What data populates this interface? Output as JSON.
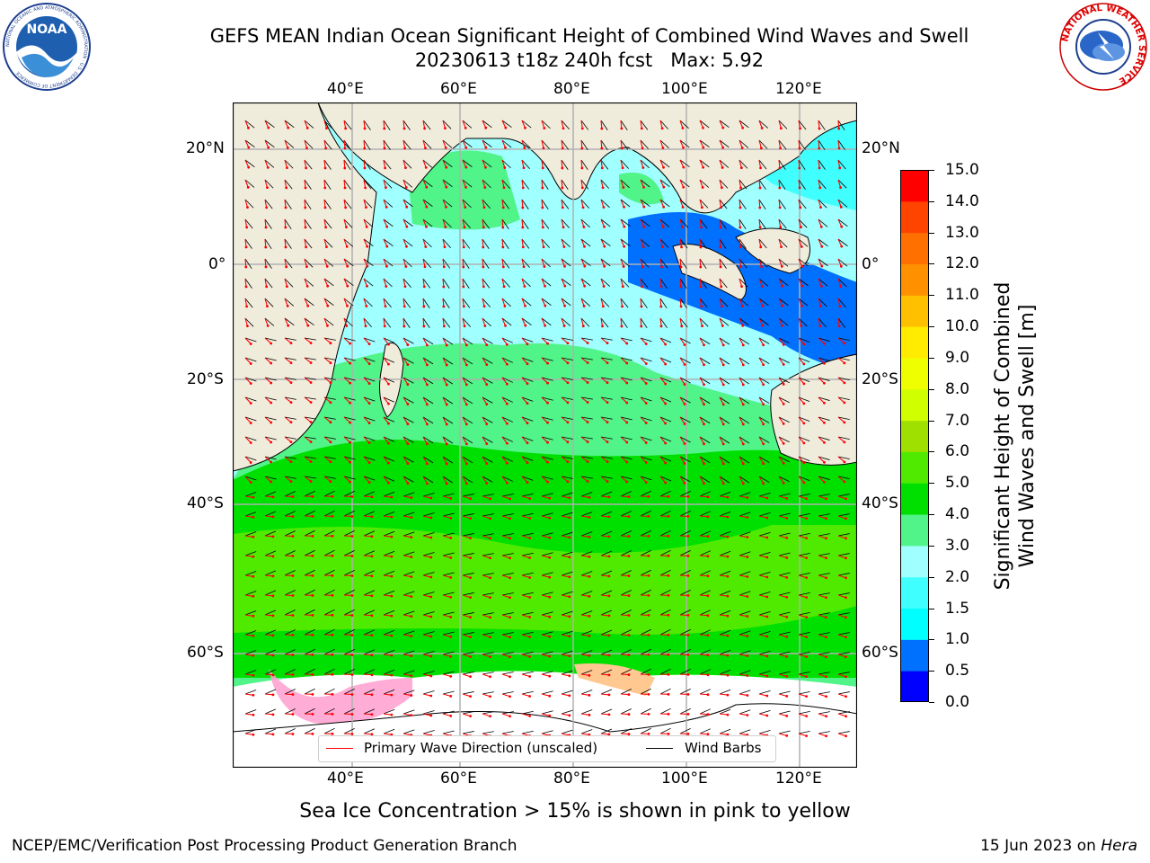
{
  "title": {
    "line1": "GEFS MEAN Indian Ocean Significant Height of Combined Wind Waves and Swell",
    "line2": "20230613 t18z 240h fcst   Max: 5.92"
  },
  "logos": {
    "noaa_text": "NOAA",
    "noaa_ring": "NATIONAL OCEANIC AND ATMOSPHERIC ADMINISTRATION · U.S. DEPARTMENT OF COMMERCE",
    "nws_ring": "NATIONAL WEATHER SERVICE"
  },
  "map": {
    "lon_labels_top": [
      "40°E",
      "60°E",
      "80°E",
      "100°E",
      "120°E"
    ],
    "lon_labels_bottom": [
      "40°E",
      "60°E",
      "80°E",
      "100°E",
      "120°E"
    ],
    "lat_labels_left": [
      "20°N",
      "0°",
      "20°S",
      "40°S",
      "60°S"
    ],
    "lat_labels_right": [
      "20°N",
      "0°",
      "20°S",
      "40°S",
      "60°S"
    ],
    "lon_range": [
      20,
      130
    ],
    "lat_range": [
      -72,
      28
    ],
    "colors": {
      "land": "#efecdc",
      "ice": "#ffffff",
      "grid": "#b0b0b0",
      "arrow": "#ff0000",
      "barb": "#000000"
    },
    "legend": {
      "wave_label": "Primary Wave Direction (unscaled)",
      "barb_label": "Wind Barbs"
    }
  },
  "colorbar": {
    "label_line1": "Significant Height of Combined",
    "label_line2": "Wind Waves and Swell [m]",
    "ticks": [
      "0.0",
      "0.5",
      "1.0",
      "1.5",
      "2.0",
      "3.0",
      "4.0",
      "5.0",
      "6.0",
      "7.0",
      "8.0",
      "9.0",
      "10.0",
      "11.0",
      "12.0",
      "13.0",
      "14.0",
      "15.0"
    ],
    "colors": [
      "#0000ff",
      "#0070ff",
      "#00ffff",
      "#40ffff",
      "#a0ffff",
      "#50f488",
      "#00e000",
      "#50ea00",
      "#a0e000",
      "#d0ff00",
      "#f0ff00",
      "#ffec00",
      "#ffc000",
      "#ff9000",
      "#ff7000",
      "#ff4400",
      "#ff0000"
    ]
  },
  "caption": "Sea Ice Concentration > 15% is shown in pink to yellow",
  "footer": {
    "left": "NCEP/EMC/Verification Post Processing Product Generation Branch",
    "right_date": "15 Jun 2023 on ",
    "right_host": "Hera"
  }
}
